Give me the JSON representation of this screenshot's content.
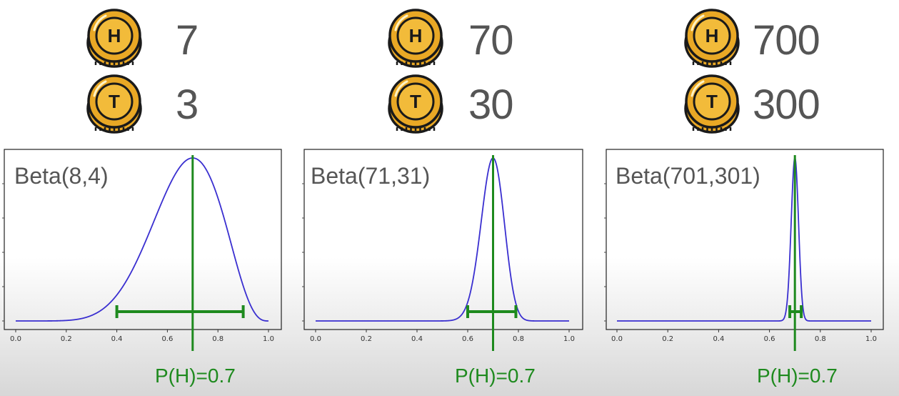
{
  "coins": [
    {
      "heads_letter": "H",
      "tails_letter": "T",
      "heads": "7",
      "tails": "3"
    },
    {
      "heads_letter": "H",
      "tails_letter": "T",
      "heads": "70",
      "tails": "30"
    },
    {
      "heads_letter": "H",
      "tails_letter": "T",
      "heads": "700",
      "tails": "300"
    }
  ],
  "colors": {
    "curve": "#3a2fd0",
    "marker": "#1e8a1e",
    "coin_fill": "#e9a825",
    "coin_outline": "#1a1a1a",
    "count_text": "#555555"
  },
  "chart_data": [
    {
      "type": "line",
      "title": "Beta(8,4)",
      "alpha": 8,
      "beta": 4,
      "xlim": [
        0.0,
        1.0
      ],
      "x_ticks": [
        "0.0",
        "0.2",
        "0.4",
        "0.6",
        "0.8",
        "1.0"
      ],
      "marker_x": 0.7,
      "interval": [
        0.4,
        0.9
      ],
      "caption": "P(H)=0.7"
    },
    {
      "type": "line",
      "title": "Beta(71,31)",
      "alpha": 71,
      "beta": 31,
      "xlim": [
        0.0,
        1.0
      ],
      "x_ticks": [
        "0.0",
        "0.2",
        "0.4",
        "0.6",
        "0.8",
        "1.0"
      ],
      "marker_x": 0.7,
      "interval": [
        0.6,
        0.79
      ],
      "caption": "P(H)=0.7"
    },
    {
      "type": "line",
      "title": "Beta(701,301)",
      "alpha": 701,
      "beta": 301,
      "xlim": [
        0.0,
        1.0
      ],
      "x_ticks": [
        "0.0",
        "0.2",
        "0.4",
        "0.6",
        "0.8",
        "1.0"
      ],
      "marker_x": 0.7,
      "interval": [
        0.68,
        0.725
      ],
      "caption": "P(H)=0.7"
    }
  ]
}
